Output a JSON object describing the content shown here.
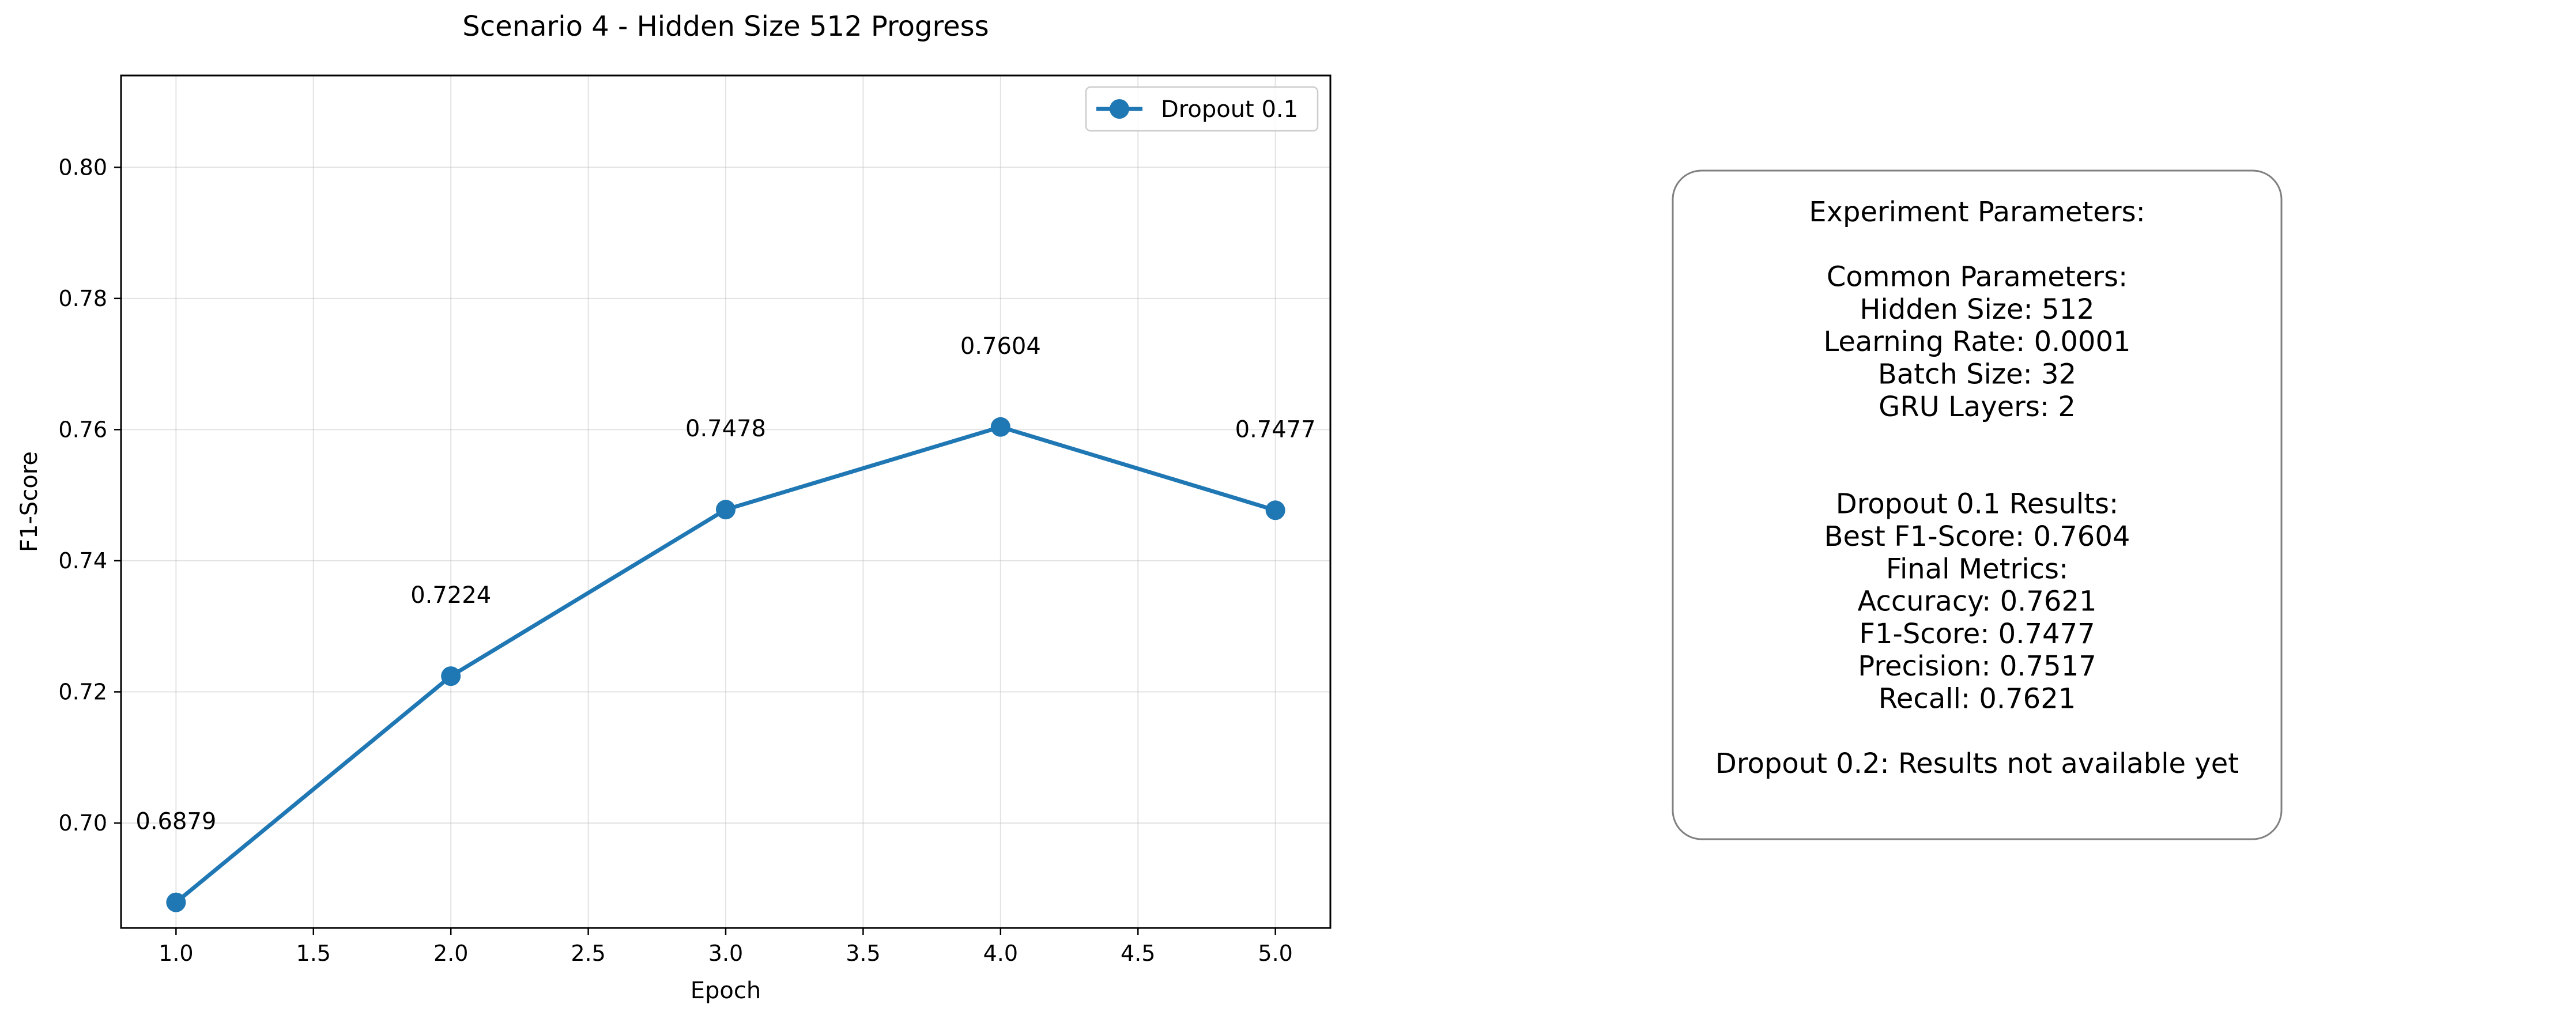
{
  "chart_data": {
    "type": "line",
    "title": "Scenario 4 - Hidden Size 512 Progress",
    "xlabel": "Epoch",
    "ylabel": "F1-Score",
    "xlim": [
      0.8,
      5.2
    ],
    "ylim": [
      0.684,
      0.814
    ],
    "xticks": [
      "1.0",
      "1.5",
      "2.0",
      "2.5",
      "3.0",
      "3.5",
      "4.0",
      "4.5",
      "5.0"
    ],
    "yticks": [
      "0.70",
      "0.72",
      "0.74",
      "0.76",
      "0.78",
      "0.80"
    ],
    "grid": true,
    "legend_position": "top-right",
    "series": [
      {
        "name": "Dropout 0.1",
        "color": "#1f77b4",
        "x": [
          1,
          2,
          3,
          4,
          5
        ],
        "y": [
          0.6879,
          0.7224,
          0.7478,
          0.7604,
          0.7477
        ],
        "labels": [
          "0.6879",
          "0.7224",
          "0.7478",
          "0.7604",
          "0.7477"
        ]
      }
    ]
  },
  "info_box": {
    "lines": [
      "Experiment Parameters:",
      "",
      "Common Parameters:",
      "Hidden Size: 512",
      "Learning Rate: 0.0001",
      "Batch Size: 32",
      "GRU Layers: 2",
      "",
      "",
      "Dropout 0.1 Results:",
      "Best F1-Score: 0.7604",
      "Final Metrics:",
      "Accuracy: 0.7621",
      "F1-Score: 0.7477",
      "Precision: 0.7517",
      "Recall: 0.7621",
      "",
      "Dropout 0.2: Results not available yet"
    ]
  }
}
